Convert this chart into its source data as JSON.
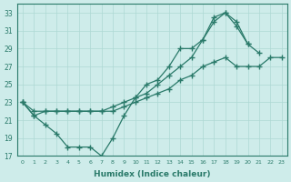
{
  "xlabel": "Humidex (Indice chaleur)",
  "bg_color": "#ceecea",
  "line_color": "#2a7a6a",
  "grid_color": "#aed8d4",
  "xlim": [
    -0.5,
    23.5
  ],
  "ylim": [
    17,
    34
  ],
  "xticks": [
    0,
    1,
    2,
    3,
    4,
    5,
    6,
    7,
    8,
    9,
    10,
    11,
    12,
    13,
    14,
    15,
    16,
    17,
    18,
    19,
    20,
    21,
    22,
    23
  ],
  "yticks": [
    17,
    19,
    21,
    23,
    25,
    27,
    29,
    31,
    33
  ],
  "line1_x": [
    0,
    1,
    2,
    3,
    4,
    5,
    6,
    7,
    8,
    9,
    10,
    11,
    12,
    13,
    14,
    15,
    16,
    17,
    18,
    19,
    20,
    21
  ],
  "line1_y": [
    23,
    21.5,
    20.5,
    19.5,
    18,
    18,
    18,
    17,
    19,
    21.5,
    23.5,
    25,
    25.5,
    27,
    29,
    29,
    30,
    32.5,
    33,
    31.5,
    29.5,
    null
  ],
  "line2_x": [
    0,
    1,
    2,
    3,
    4,
    5,
    6,
    7,
    8,
    9,
    10,
    11,
    12,
    13,
    14,
    15,
    16,
    17,
    18,
    19,
    20,
    21,
    22
  ],
  "line2_y": [
    23,
    21.5,
    22,
    22,
    22,
    22,
    22,
    22,
    22.5,
    23,
    23.5,
    24,
    25,
    26,
    27,
    28,
    30,
    32,
    33,
    32,
    29.5,
    28.5,
    null
  ],
  "line3_x": [
    0,
    1,
    2,
    3,
    4,
    5,
    6,
    7,
    8,
    9,
    10,
    11,
    12,
    13,
    14,
    15,
    16,
    17,
    18,
    19,
    20,
    21,
    22,
    23
  ],
  "line3_y": [
    23,
    22,
    22,
    22,
    22,
    22,
    22,
    22,
    22,
    22.5,
    23,
    23.5,
    24,
    24.5,
    25.5,
    26,
    27,
    27.5,
    28,
    27,
    27,
    27,
    28,
    28
  ]
}
